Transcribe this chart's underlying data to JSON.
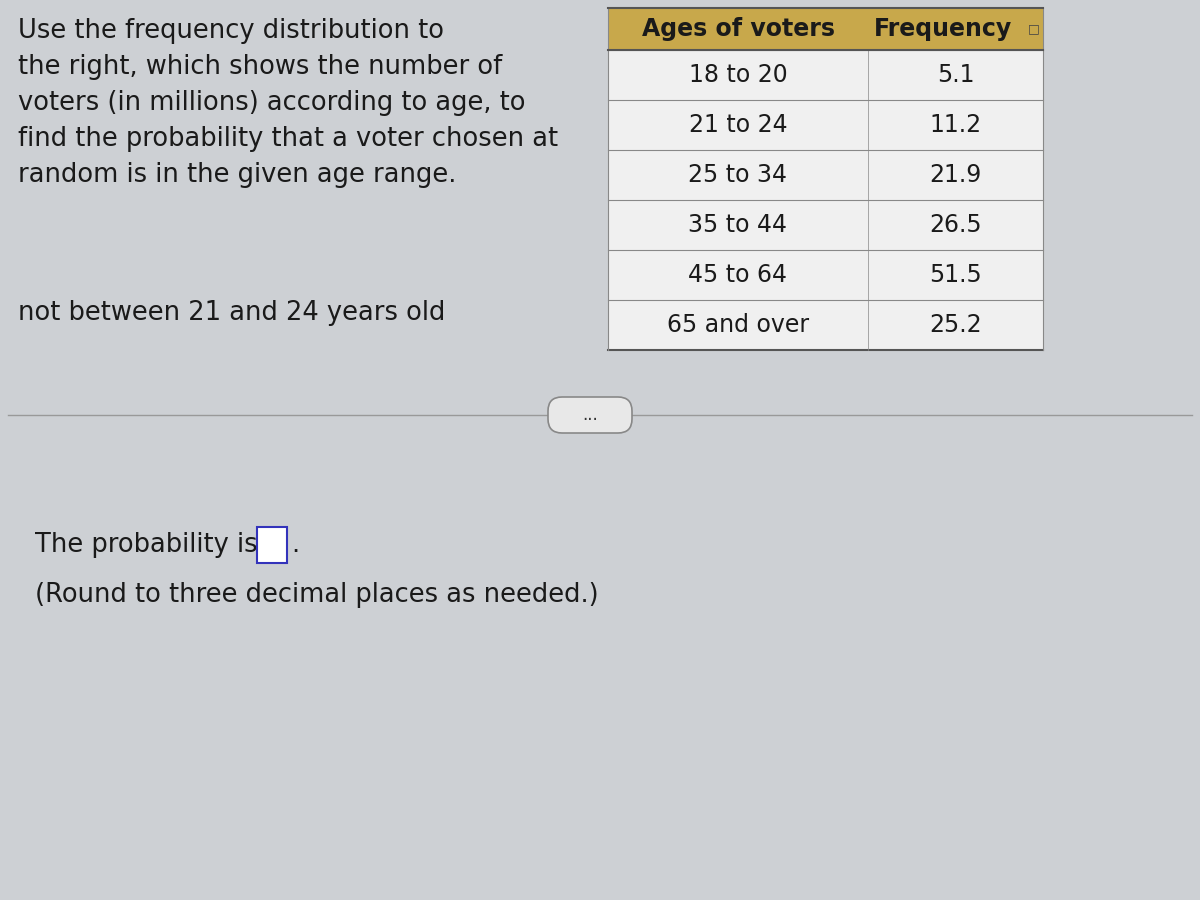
{
  "background_color": "#cdd0d4",
  "title_text_left": "Use the frequency distribution to\nthe right, which shows the number of\nvoters (in millions) according to age, to\nfind the probability that a voter chosen at\nrandom is in the given age range.",
  "question_text": "not between 21 and 24 years old",
  "answer_text_prefix": "The probability is ",
  "answer_text_suffix": ".",
  "answer_note": "(Round to three decimal places as needed.)",
  "table_header_col1": "Ages of voters",
  "table_header_col2": "Frequency",
  "table_header_bg": "#c8a84b",
  "table_header_text_color": "#1a1a1a",
  "table_rows": [
    [
      "18 to 20",
      "5.1"
    ],
    [
      "21 to 24",
      "11.2"
    ],
    [
      "25 to 34",
      "21.9"
    ],
    [
      "35 to 44",
      "26.5"
    ],
    [
      "45 to 64",
      "51.5"
    ],
    [
      "65 and over",
      "25.2"
    ]
  ],
  "table_bg": "#f0f0f0",
  "table_text_color": "#1a1a1a",
  "dots_button_text": "...",
  "fig_width": 12.0,
  "fig_height": 9.0,
  "dpi": 100
}
